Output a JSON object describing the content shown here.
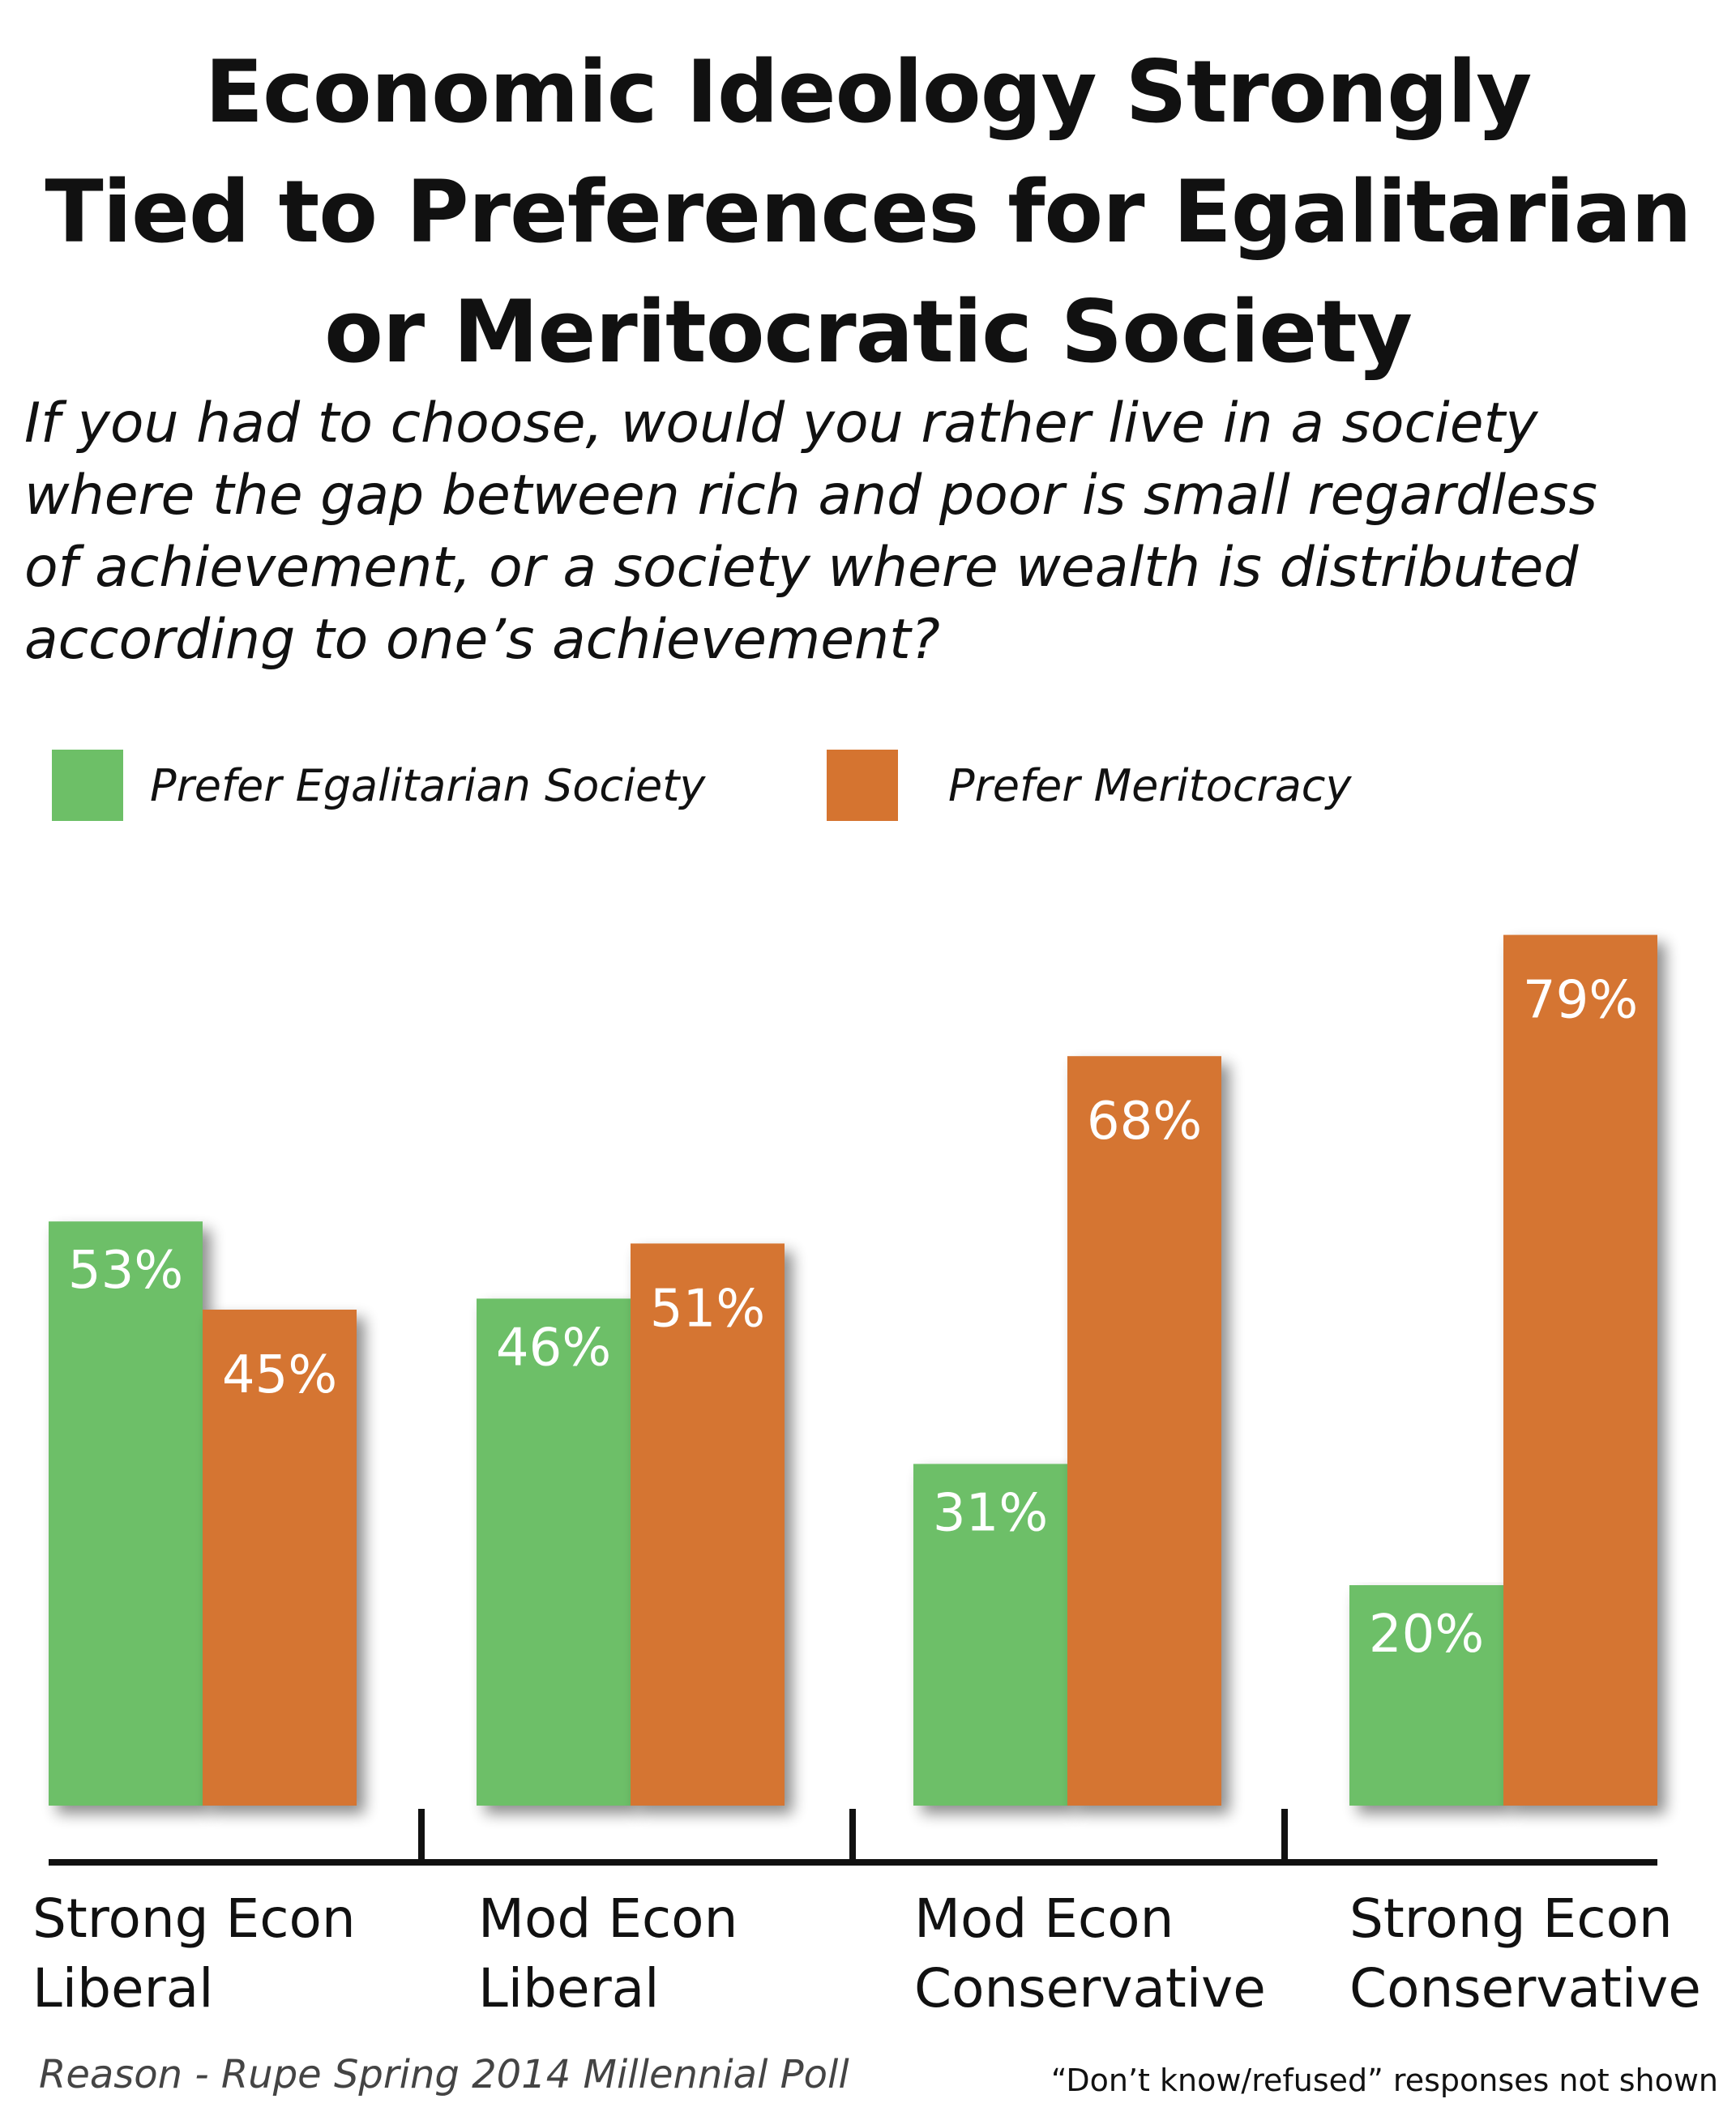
{
  "chart_data": {
    "type": "bar",
    "title_lines": [
      "Economic Ideology Strongly",
      "Tied to Preferences for Egalitarian",
      "or Meritocratic Society"
    ],
    "subtitle_lines": [
      "If you had to choose, would you rather live in a society",
      "where the gap between rich and poor is small regardless",
      "of achievement, or a society where wealth is distributed",
      "according to one’s achievement?"
    ],
    "categories": [
      [
        "Strong Econ",
        "Liberal"
      ],
      [
        "Mod Econ",
        "Liberal"
      ],
      [
        "Mod Econ",
        "Conservative"
      ],
      [
        "Strong Econ",
        "Conservative"
      ]
    ],
    "series": [
      {
        "name": "Prefer Egalitarian Society",
        "color": "#6dbf67",
        "values": [
          53,
          46,
          31,
          20
        ],
        "labels": [
          "53%",
          "46%",
          "31%",
          "20%"
        ]
      },
      {
        "name": "Prefer Meritocracy",
        "color": "#d57430",
        "values": [
          45,
          51,
          68,
          79
        ],
        "labels": [
          "45%",
          "51%",
          "68%",
          "79%"
        ]
      }
    ],
    "ylim": [
      0,
      100
    ],
    "grid": false,
    "legend": "top-left",
    "source": "Reason - Rupe Spring 2014 Millennial Poll",
    "note": "“Don’t know/refused” responses not shown"
  }
}
